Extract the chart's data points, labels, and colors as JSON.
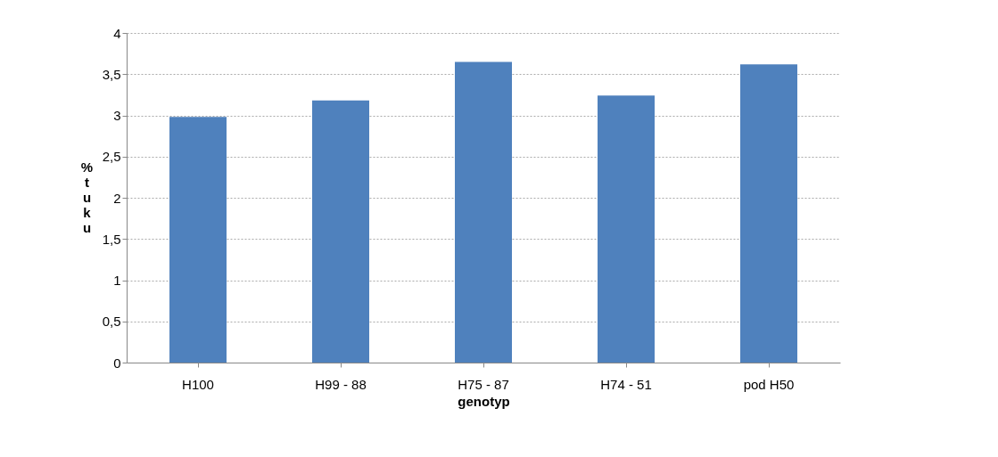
{
  "chart_data": {
    "type": "bar",
    "xlabel": "genotyp",
    "ylabel": "% tuku",
    "categories": [
      "H100",
      "H99 - 88",
      "H75 - 87",
      "H74 - 51",
      "pod H50"
    ],
    "values": [
      2.98,
      3.18,
      3.65,
      3.24,
      3.62
    ],
    "color": "#4f81bd",
    "ylim": [
      0,
      4
    ],
    "yticks": [
      0,
      {
        "value": 0.5,
        "label": "0,5"
      },
      1,
      {
        "value": 1.5,
        "label": "1,5"
      },
      2,
      {
        "value": 2.5,
        "label": "2,5"
      },
      3,
      {
        "value": 3.5,
        "label": "3,5"
      },
      4
    ],
    "grid": true
  }
}
